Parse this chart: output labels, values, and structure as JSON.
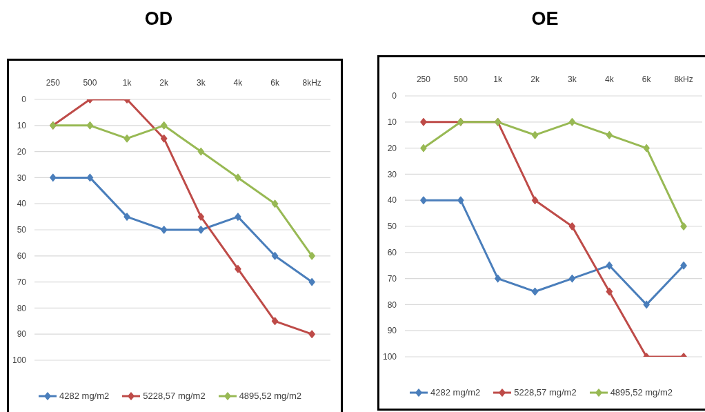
{
  "chart_data": [
    {
      "type": "line",
      "title": "OD",
      "categories": [
        "250",
        "500",
        "1k",
        "2k",
        "3k",
        "4k",
        "6k",
        "8kHz"
      ],
      "series": [
        {
          "name": "4282 mg/m2",
          "color": "#4a7ebb",
          "values": [
            30,
            30,
            45,
            50,
            50,
            45,
            60,
            70
          ]
        },
        {
          "name": "5228,57 mg/m2",
          "color": "#be4b48",
          "values": [
            10,
            0,
            0,
            15,
            45,
            65,
            85,
            90
          ]
        },
        {
          "name": "4895,52 mg/m2",
          "color": "#98b954",
          "values": [
            10,
            10,
            15,
            10,
            20,
            30,
            40,
            60
          ]
        }
      ],
      "ylim": [
        100,
        0
      ],
      "yticks": [
        0,
        10,
        20,
        30,
        40,
        50,
        60,
        70,
        80,
        90,
        100
      ],
      "grid": "y",
      "legend": "bottom",
      "marker": "diamond"
    },
    {
      "type": "line",
      "title": "OE",
      "categories": [
        "250",
        "500",
        "1k",
        "2k",
        "3k",
        "4k",
        "6k",
        "8kHz"
      ],
      "series": [
        {
          "name": "4282 mg/m2",
          "color": "#4a7ebb",
          "values": [
            40,
            40,
            70,
            75,
            70,
            65,
            80,
            65
          ]
        },
        {
          "name": "5228,57 mg/m2",
          "color": "#be4b48",
          "values": [
            10,
            10,
            10,
            40,
            50,
            75,
            100,
            100
          ]
        },
        {
          "name": "4895,52 mg/m2",
          "color": "#98b954",
          "values": [
            20,
            10,
            10,
            15,
            10,
            15,
            20,
            50
          ]
        }
      ],
      "ylim": [
        100,
        0
      ],
      "yticks": [
        0,
        10,
        20,
        30,
        40,
        50,
        60,
        70,
        80,
        90,
        100
      ],
      "grid": "y",
      "legend": "bottom",
      "marker": "diamond"
    }
  ]
}
